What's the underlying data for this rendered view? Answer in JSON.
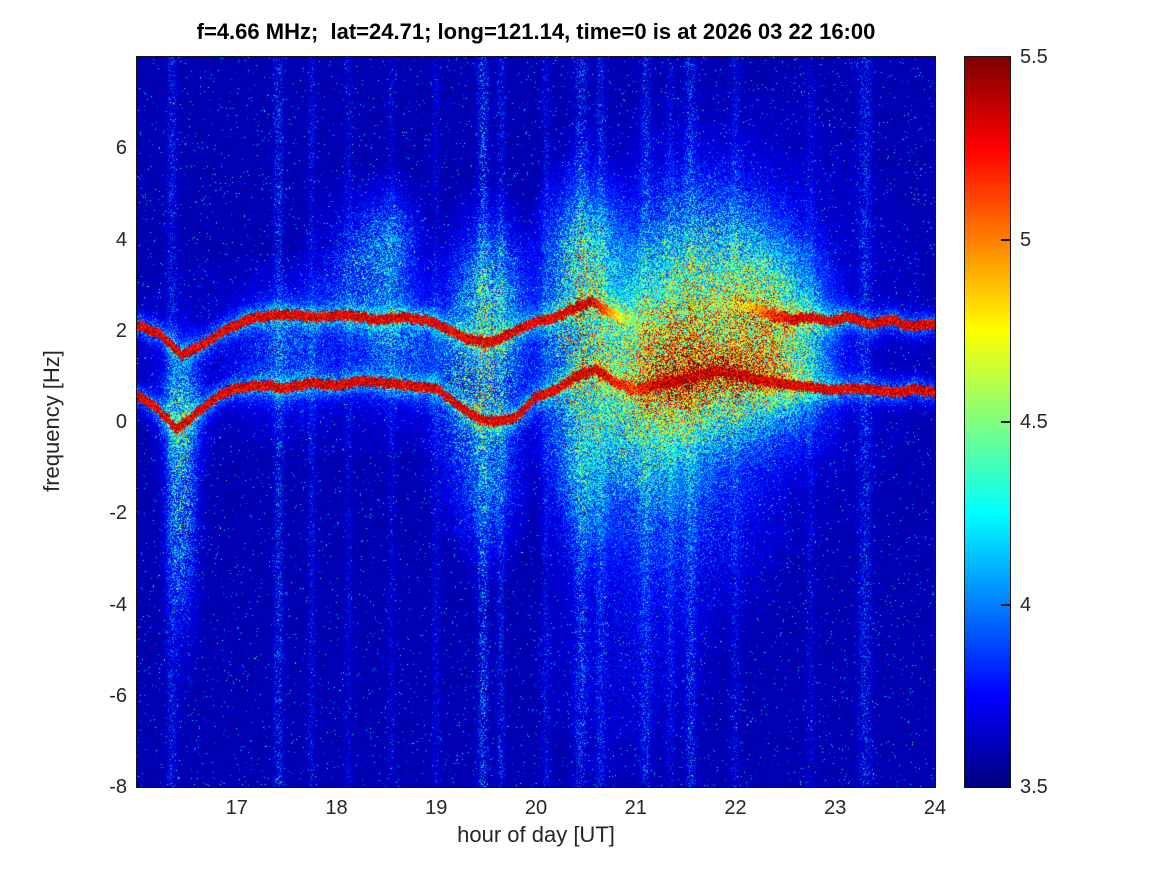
{
  "chart_data": {
    "type": "heatmap",
    "title": "f=4.66 MHz;  lat=24.71; long=121.14, time=0 is at 2026 03 22 16:00",
    "xlabel": "hour of day [UT]",
    "ylabel": "frequency [Hz]",
    "x_range": [
      16,
      24
    ],
    "y_range": [
      -8,
      8
    ],
    "x_ticks": [
      17,
      18,
      19,
      20,
      21,
      22,
      23,
      24
    ],
    "y_ticks": [
      6,
      4,
      2,
      0,
      -2,
      -4,
      -6,
      -8
    ],
    "grid": false,
    "colorbar": {
      "range": [
        3.5,
        5.5
      ],
      "ticks": [
        5.5,
        5,
        4.5,
        4,
        3.5
      ],
      "inner_tickmarks": [
        5,
        4.5,
        4
      ],
      "colormap": "jet",
      "position": "right"
    },
    "background_level": 3.5,
    "series": [
      {
        "name": "upper-doppler-trace",
        "level": 5.4,
        "points": [
          [
            16.0,
            2.15,
            1
          ],
          [
            16.25,
            1.9,
            1
          ],
          [
            16.45,
            1.45,
            1
          ],
          [
            16.7,
            1.75,
            1
          ],
          [
            16.95,
            2.1,
            1
          ],
          [
            17.2,
            2.3,
            1
          ],
          [
            17.5,
            2.35,
            1
          ],
          [
            17.8,
            2.3,
            1
          ],
          [
            18.1,
            2.35,
            1
          ],
          [
            18.4,
            2.25,
            1
          ],
          [
            18.7,
            2.3,
            1
          ],
          [
            18.95,
            2.2,
            1
          ],
          [
            19.15,
            2.0,
            1
          ],
          [
            19.35,
            1.8,
            1
          ],
          [
            19.55,
            1.75,
            1
          ],
          [
            19.75,
            1.95,
            1
          ],
          [
            20.0,
            2.2,
            1
          ],
          [
            20.2,
            2.3,
            1
          ],
          [
            20.4,
            2.5,
            1
          ],
          [
            20.55,
            2.65,
            1
          ],
          [
            20.7,
            2.45,
            0.85
          ],
          [
            20.9,
            2.25,
            0.6
          ],
          [
            21.1,
            2.2,
            0.4
          ],
          [
            21.4,
            2.3,
            0.35
          ],
          [
            21.7,
            2.45,
            0.45
          ],
          [
            21.95,
            2.55,
            0.55
          ],
          [
            22.15,
            2.5,
            0.7
          ],
          [
            22.35,
            2.35,
            0.9
          ],
          [
            22.55,
            2.25,
            1
          ],
          [
            22.75,
            2.3,
            1
          ],
          [
            22.95,
            2.2,
            1
          ],
          [
            23.15,
            2.3,
            1
          ],
          [
            23.35,
            2.15,
            1
          ],
          [
            23.55,
            2.25,
            1
          ],
          [
            23.75,
            2.1,
            1
          ],
          [
            24.0,
            2.15,
            1
          ]
        ]
      },
      {
        "name": "lower-doppler-trace",
        "level": 5.4,
        "points": [
          [
            16.0,
            0.6,
            1
          ],
          [
            16.2,
            0.3,
            1
          ],
          [
            16.4,
            -0.15,
            1
          ],
          [
            16.6,
            0.2,
            1
          ],
          [
            16.8,
            0.55,
            1
          ],
          [
            17.0,
            0.75,
            1
          ],
          [
            17.25,
            0.8,
            1
          ],
          [
            17.5,
            0.75,
            1
          ],
          [
            17.75,
            0.85,
            1
          ],
          [
            18.0,
            0.8,
            1
          ],
          [
            18.25,
            0.9,
            1
          ],
          [
            18.5,
            0.85,
            1
          ],
          [
            18.75,
            0.8,
            1
          ],
          [
            19.0,
            0.75,
            1
          ],
          [
            19.2,
            0.4,
            1
          ],
          [
            19.4,
            0.1,
            1
          ],
          [
            19.6,
            0.0,
            1
          ],
          [
            19.8,
            0.1,
            1
          ],
          [
            20.0,
            0.55,
            1
          ],
          [
            20.2,
            0.7,
            1
          ],
          [
            20.4,
            1.0,
            1
          ],
          [
            20.6,
            1.15,
            1
          ],
          [
            20.8,
            0.85,
            0.95
          ],
          [
            21.0,
            0.7,
            0.9
          ],
          [
            21.2,
            0.8,
            1
          ],
          [
            21.4,
            0.9,
            1
          ],
          [
            21.6,
            1.0,
            1
          ],
          [
            21.8,
            1.1,
            1
          ],
          [
            22.0,
            1.05,
            1
          ],
          [
            22.2,
            0.95,
            1
          ],
          [
            22.4,
            0.85,
            1
          ],
          [
            22.6,
            0.8,
            1
          ],
          [
            22.8,
            0.75,
            1
          ],
          [
            23.0,
            0.7,
            1
          ],
          [
            23.2,
            0.75,
            1
          ],
          [
            23.4,
            0.7,
            1
          ],
          [
            23.6,
            0.65,
            1
          ],
          [
            23.8,
            0.72,
            1
          ],
          [
            24.0,
            0.65,
            1
          ]
        ]
      }
    ],
    "noise_clouds": [
      [
        16.45,
        -1.6,
        0.1,
        1.8,
        0.3
      ],
      [
        16.45,
        0.3,
        0.15,
        0.8,
        0.25
      ],
      [
        17.5,
        1.6,
        0.3,
        0.9,
        0.15
      ],
      [
        18.3,
        3.2,
        0.3,
        1.0,
        0.2
      ],
      [
        18.55,
        4.0,
        0.18,
        0.7,
        0.18
      ],
      [
        18.6,
        1.6,
        0.25,
        0.8,
        0.18
      ],
      [
        19.45,
        1.0,
        0.28,
        1.6,
        0.35
      ],
      [
        19.55,
        3.0,
        0.22,
        0.9,
        0.25
      ],
      [
        19.5,
        -1.5,
        0.2,
        1.0,
        0.15
      ],
      [
        20.45,
        1.8,
        0.22,
        1.8,
        0.45
      ],
      [
        20.5,
        3.8,
        0.25,
        0.9,
        0.22
      ],
      [
        20.45,
        -1.5,
        0.2,
        1.2,
        0.18
      ],
      [
        21.0,
        0.3,
        0.35,
        1.8,
        0.28
      ],
      [
        21.3,
        1.2,
        0.35,
        1.2,
        0.35
      ],
      [
        21.8,
        1.3,
        0.55,
        1.3,
        0.45
      ],
      [
        21.85,
        0.95,
        0.45,
        0.55,
        0.4
      ],
      [
        21.7,
        3.6,
        0.5,
        1.2,
        0.28
      ],
      [
        22.3,
        2.6,
        0.35,
        1.0,
        0.28
      ],
      [
        22.5,
        1.5,
        0.3,
        1.0,
        0.3
      ],
      [
        21.5,
        -2.2,
        0.5,
        1.4,
        0.12
      ],
      [
        20.9,
        -5.0,
        0.5,
        1.5,
        0.07
      ],
      [
        18.0,
        1.5,
        1.5,
        1.2,
        0.07
      ],
      [
        21.8,
        2.0,
        1.0,
        2.5,
        0.12
      ]
    ],
    "vertical_streaks": [
      [
        16.35,
        0.04,
        0.2
      ],
      [
        17.42,
        0.035,
        0.25
      ],
      [
        17.75,
        0.03,
        0.15
      ],
      [
        18.12,
        0.03,
        0.12
      ],
      [
        18.55,
        0.03,
        0.12
      ],
      [
        19.0,
        0.03,
        0.12
      ],
      [
        19.47,
        0.04,
        0.3
      ],
      [
        19.65,
        0.03,
        0.2
      ],
      [
        20.1,
        0.03,
        0.15
      ],
      [
        20.45,
        0.05,
        0.25
      ],
      [
        20.65,
        0.035,
        0.2
      ],
      [
        21.1,
        0.04,
        0.22
      ],
      [
        21.35,
        0.03,
        0.15
      ],
      [
        21.55,
        0.04,
        0.25
      ],
      [
        22.0,
        0.035,
        0.15
      ],
      [
        22.75,
        0.03,
        0.12
      ],
      [
        23.3,
        0.05,
        0.22
      ]
    ]
  }
}
